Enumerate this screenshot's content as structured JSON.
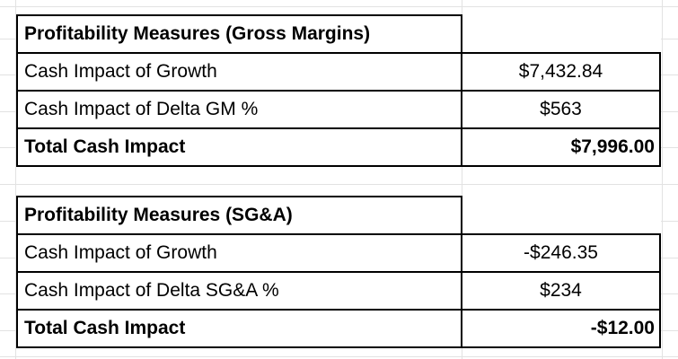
{
  "app": {
    "type": "spreadsheet-view"
  },
  "colors": {
    "background": "#ffffff",
    "gridline": "#e2e2e2",
    "table_border": "#000000",
    "text": "#000000"
  },
  "tables": [
    {
      "title": "Profitability Measures (Gross Margins)",
      "rows": [
        {
          "label": "Cash Impact of Growth",
          "value": "$7,432.84"
        },
        {
          "label": "Cash Impact of Delta GM %",
          "value": "$563"
        },
        {
          "label": "Total Cash Impact",
          "value": "$7,996.00"
        }
      ]
    },
    {
      "title": "Profitability Measures (SG&A)",
      "rows": [
        {
          "label": "Cash Impact of Growth",
          "value": "-$246.35"
        },
        {
          "label": "Cash Impact of Delta SG&A %",
          "value": "$234"
        },
        {
          "label": "Total Cash Impact",
          "value": "-$12.00"
        }
      ]
    }
  ]
}
